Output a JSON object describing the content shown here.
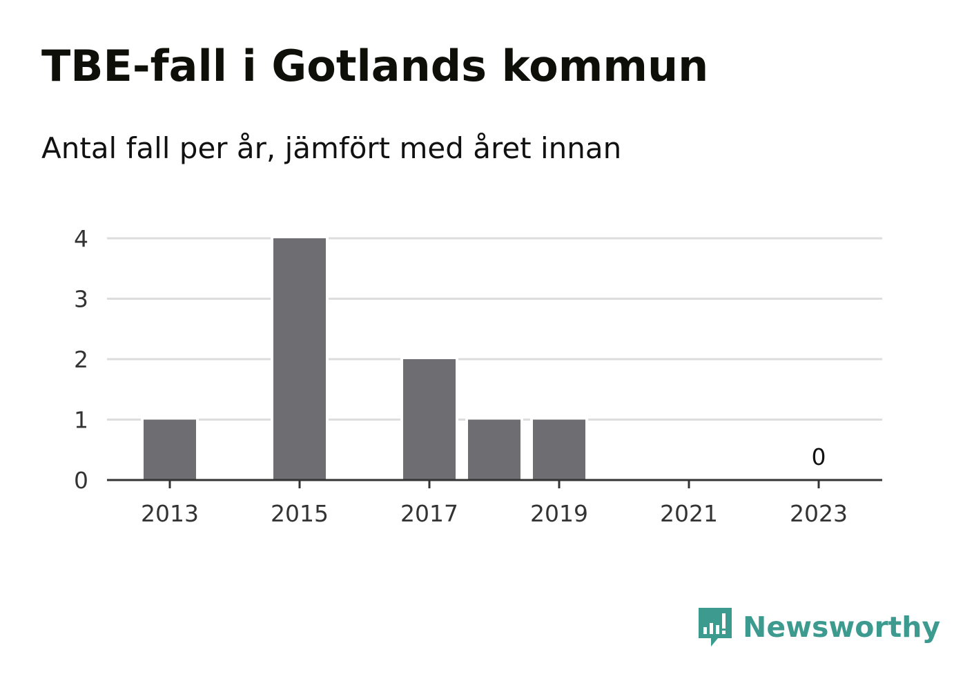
{
  "header": {
    "title": "TBE-fall i Gotlands kommun",
    "subtitle": "Antal fall per år, jämfört med året innan"
  },
  "brand": {
    "name": "Newsworthy",
    "color": "#3d9a8f",
    "icon": "newsworthy-logo-icon"
  },
  "chart_data": {
    "type": "bar",
    "x": [
      2013,
      2014,
      2015,
      2016,
      2017,
      2018,
      2019,
      2020,
      2021,
      2022,
      2023
    ],
    "values": [
      1,
      0,
      4,
      0,
      2,
      1,
      1,
      0,
      0,
      0,
      0
    ],
    "xticks": [
      "2013",
      "2015",
      "2017",
      "2019",
      "2021",
      "2023"
    ],
    "yticks": [
      "0",
      "1",
      "2",
      "3",
      "4"
    ],
    "ylim": [
      0,
      4
    ],
    "grid": true,
    "bar_color": "#6e6d72",
    "grid_color": "#dddddd",
    "axis_color": "#333333",
    "annotations": [
      {
        "x": 2023,
        "text": "0"
      }
    ]
  }
}
